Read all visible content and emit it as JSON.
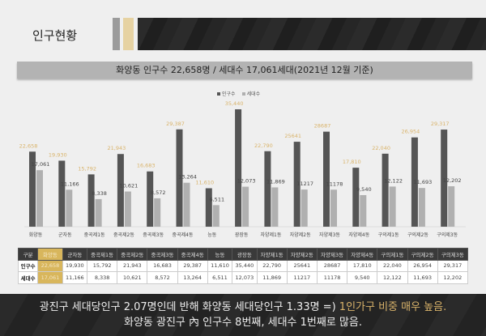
{
  "header": {
    "title": "인구현황",
    "subtitle": "화양동 인구수 22,658명 / 세대수 17,061세대(2021년 12월 기준)"
  },
  "colors": {
    "population": "#555555",
    "households": "#b0b0b0",
    "highlight": "#d8b65c",
    "pop_label": "#d9b36a"
  },
  "chart_data": {
    "type": "bar",
    "categories": [
      "화양동",
      "군자동",
      "중곡제1동",
      "중곡제2동",
      "중곡제3동",
      "중곡제4동",
      "능동",
      "광장동",
      "자양제1동",
      "자양제2동",
      "자양제3동",
      "자양제4동",
      "구의제1동",
      "구의제2동",
      "구의제3동"
    ],
    "series": [
      {
        "name": "인구수",
        "values": [
          22658,
          19930,
          15792,
          21943,
          16683,
          29387,
          11610,
          35440,
          22790,
          25641,
          28687,
          17810,
          22040,
          26954,
          29317
        ],
        "labels": [
          "22,658",
          "19,930",
          "15,792",
          "21,943",
          "16,683",
          "29,387",
          "11,610",
          "35,440",
          "22,790",
          "25641",
          "28687",
          "17,810",
          "22,040",
          "26,954",
          "29,317"
        ]
      },
      {
        "name": "세대수",
        "values": [
          17061,
          11166,
          8338,
          10621,
          8572,
          13264,
          6511,
          12073,
          11869,
          11217,
          11178,
          9540,
          12122,
          11693,
          12202
        ],
        "labels": [
          "17,061",
          "11,166",
          "8,338",
          "10,621",
          "8,572",
          "13,264",
          "6,511",
          "12,073",
          "11,869",
          "11217",
          "11178",
          "9,540",
          "12,122",
          "11,693",
          "12,202"
        ]
      }
    ],
    "legend": "top-center",
    "grid": false
  },
  "table": {
    "header": [
      "구분",
      "화양동",
      "군자동",
      "중곡제1동",
      "중곡제2동",
      "중곡제3동",
      "중곡제4동",
      "능동",
      "광장동",
      "자양제1동",
      "자양제2동",
      "자양제3동",
      "자양제4동",
      "구의제1동",
      "구의제2동",
      "구의제3동"
    ],
    "rows": [
      [
        "인구수",
        "22,658",
        "19,930",
        "15,792",
        "21,943",
        "16,683",
        "29,387",
        "11,610",
        "35,440",
        "22,790",
        "25641",
        "28687",
        "17,810",
        "22,040",
        "26,954",
        "29,317"
      ],
      [
        "세대수",
        "17,061",
        "11,166",
        "8,338",
        "10,621",
        "8,572",
        "13,264",
        "6,511",
        "12,073",
        "11,869",
        "11217",
        "11178",
        "9,540",
        "12,122",
        "11,693",
        "12,202"
      ]
    ]
  },
  "footer": {
    "line1_a": "광진구 세대당인구 2.07명인데 반해 화양동 세대당인구 1.33명 =) ",
    "line1_b": "1인가구 비중 매우 높음.",
    "line2": "화양동 광진구 內 인구수 8번째, 세대수 1번째로 많음."
  }
}
